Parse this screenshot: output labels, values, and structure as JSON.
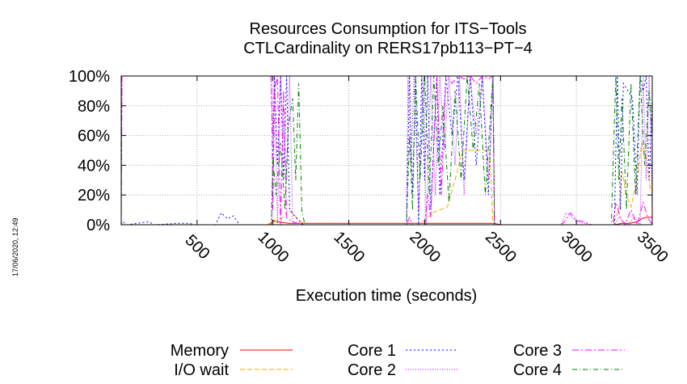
{
  "chart_data": {
    "type": "line",
    "title": "Resources Consumption for ITS−Tools",
    "subtitle": "CTLCardinality on RERS17pb113−PT−4",
    "xlabel": "Execution time (seconds)",
    "ylabel": "",
    "timestamp": "17/06/2020, 12:49",
    "xlim": [
      0,
      3500
    ],
    "ylim": [
      0,
      100
    ],
    "x_ticks": [
      500,
      1000,
      1500,
      2000,
      2500,
      3000,
      3500
    ],
    "x_tick_labels": [
      "500",
      "1000",
      "1500",
      "2000",
      "2500",
      "3000",
      "3500"
    ],
    "y_ticks": [
      0,
      20,
      40,
      60,
      80,
      100
    ],
    "y_tick_labels": [
      "0%",
      "20%",
      "40%",
      "60%",
      "80%",
      "100%"
    ],
    "grid": true,
    "legend_position": "bottom",
    "series": [
      {
        "name": "Memory",
        "color": "#ff0000",
        "dash": "solid",
        "points": [
          [
            0,
            0
          ],
          [
            500,
            0
          ],
          [
            980,
            0
          ],
          [
            1000,
            3
          ],
          [
            1030,
            2
          ],
          [
            1100,
            1
          ],
          [
            1150,
            1
          ],
          [
            1200,
            1
          ],
          [
            1900,
            1
          ],
          [
            2000,
            1
          ],
          [
            2100,
            1
          ],
          [
            2200,
            1
          ],
          [
            2300,
            1
          ],
          [
            2400,
            1
          ],
          [
            2460,
            1
          ],
          [
            2500,
            0
          ],
          [
            3250,
            0
          ],
          [
            3300,
            1
          ],
          [
            3350,
            1
          ],
          [
            3400,
            2
          ],
          [
            3430,
            4
          ],
          [
            3460,
            5
          ],
          [
            3500,
            5
          ]
        ]
      },
      {
        "name": "I/O wait",
        "color": "#ffa500",
        "dash": "6,3",
        "points": [
          [
            0,
            0
          ],
          [
            960,
            0
          ],
          [
            1000,
            2
          ],
          [
            1050,
            3
          ],
          [
            1100,
            10
          ],
          [
            1130,
            8
          ],
          [
            1170,
            3
          ],
          [
            1220,
            0
          ],
          [
            1870,
            0
          ],
          [
            1950,
            0
          ],
          [
            2000,
            3
          ],
          [
            2050,
            8
          ],
          [
            2100,
            10
          ],
          [
            2150,
            12
          ],
          [
            2200,
            30
          ],
          [
            2250,
            50
          ],
          [
            2300,
            50
          ],
          [
            2350,
            50
          ],
          [
            2400,
            50
          ],
          [
            2430,
            50
          ],
          [
            2450,
            0
          ],
          [
            3240,
            0
          ],
          [
            3280,
            10
          ],
          [
            3300,
            36
          ],
          [
            3330,
            20
          ],
          [
            3360,
            12
          ],
          [
            3400,
            30
          ],
          [
            3430,
            55
          ],
          [
            3460,
            45
          ],
          [
            3490,
            22
          ]
        ]
      },
      {
        "name": "Core 1",
        "color": "#0000ff",
        "dash": "2,3",
        "points": [
          [
            0,
            0
          ],
          [
            10,
            2
          ],
          [
            40,
            0
          ],
          [
            180,
            2
          ],
          [
            220,
            0
          ],
          [
            380,
            1
          ],
          [
            450,
            1
          ],
          [
            480,
            0
          ],
          [
            620,
            0
          ],
          [
            660,
            8
          ],
          [
            700,
            4
          ],
          [
            740,
            6
          ],
          [
            780,
            0
          ],
          [
            990,
            0
          ],
          [
            1010,
            100
          ],
          [
            1030,
            40
          ],
          [
            1050,
            100
          ],
          [
            1070,
            30
          ],
          [
            1090,
            100
          ],
          [
            1110,
            10
          ],
          [
            1150,
            5
          ],
          [
            1200,
            0
          ],
          [
            1880,
            0
          ],
          [
            1900,
            100
          ],
          [
            1920,
            20
          ],
          [
            1940,
            100
          ],
          [
            1960,
            0
          ],
          [
            1980,
            100
          ],
          [
            2000,
            30
          ],
          [
            2020,
            100
          ],
          [
            2040,
            10
          ],
          [
            2080,
            100
          ],
          [
            2100,
            20
          ],
          [
            2140,
            100
          ],
          [
            2180,
            60
          ],
          [
            2220,
            100
          ],
          [
            2260,
            30
          ],
          [
            2300,
            100
          ],
          [
            2340,
            40
          ],
          [
            2380,
            100
          ],
          [
            2420,
            20
          ],
          [
            2450,
            100
          ],
          [
            2460,
            0
          ],
          [
            3250,
            0
          ],
          [
            3270,
            100
          ],
          [
            3290,
            10
          ],
          [
            3310,
            95
          ],
          [
            3340,
            90
          ],
          [
            3370,
            85
          ],
          [
            3400,
            20
          ],
          [
            3420,
            100
          ],
          [
            3440,
            90
          ],
          [
            3460,
            100
          ],
          [
            3480,
            30
          ],
          [
            3500,
            85
          ]
        ]
      },
      {
        "name": "Core 2",
        "color": "#a000ff",
        "dash": "1,2",
        "points": [
          [
            0,
            0
          ],
          [
            5,
            100
          ],
          [
            960,
            100
          ],
          [
            985,
            100
          ],
          [
            1000,
            60
          ],
          [
            1010,
            100
          ],
          [
            1030,
            0
          ],
          [
            1050,
            100
          ],
          [
            1070,
            60
          ],
          [
            1090,
            30
          ],
          [
            1110,
            100
          ],
          [
            1130,
            0
          ],
          [
            1200,
            0
          ],
          [
            1880,
            0
          ],
          [
            1890,
            100
          ],
          [
            1910,
            40
          ],
          [
            1930,
            100
          ],
          [
            1960,
            10
          ],
          [
            1990,
            100
          ],
          [
            2010,
            0
          ],
          [
            2040,
            100
          ],
          [
            2070,
            20
          ],
          [
            2100,
            100
          ],
          [
            2130,
            50
          ],
          [
            2160,
            100
          ],
          [
            2200,
            40
          ],
          [
            2230,
            100
          ],
          [
            2260,
            20
          ],
          [
            2300,
            100
          ],
          [
            2340,
            60
          ],
          [
            2380,
            100
          ],
          [
            2420,
            30
          ],
          [
            2450,
            100
          ],
          [
            2460,
            0
          ],
          [
            2900,
            0
          ],
          [
            2930,
            8
          ],
          [
            2960,
            6
          ],
          [
            3000,
            2
          ],
          [
            3100,
            0
          ],
          [
            3250,
            0
          ],
          [
            3280,
            5
          ],
          [
            3310,
            2
          ],
          [
            3340,
            0
          ],
          [
            3380,
            5
          ],
          [
            3420,
            0
          ],
          [
            3440,
            100
          ],
          [
            3460,
            30
          ],
          [
            3480,
            100
          ],
          [
            3500,
            10
          ]
        ]
      },
      {
        "name": "Core 3",
        "color": "#ff00ff",
        "dash": "8,3,2,3",
        "points": [
          [
            0,
            0
          ],
          [
            5,
            100
          ],
          [
            960,
            100
          ],
          [
            990,
            100
          ],
          [
            1000,
            10
          ],
          [
            1010,
            90
          ],
          [
            1030,
            100
          ],
          [
            1050,
            0
          ],
          [
            1070,
            90
          ],
          [
            1090,
            5
          ],
          [
            1130,
            2
          ],
          [
            1200,
            0
          ],
          [
            1880,
            0
          ],
          [
            1900,
            5
          ],
          [
            1920,
            0
          ],
          [
            2000,
            0
          ],
          [
            2020,
            20
          ],
          [
            2040,
            5
          ],
          [
            2080,
            100
          ],
          [
            2110,
            20
          ],
          [
            2140,
            100
          ],
          [
            2180,
            95
          ],
          [
            2220,
            100
          ],
          [
            2260,
            98
          ],
          [
            2300,
            100
          ],
          [
            2340,
            95
          ],
          [
            2380,
            100
          ],
          [
            2420,
            98
          ],
          [
            2450,
            100
          ],
          [
            2460,
            0
          ],
          [
            2900,
            0
          ],
          [
            2920,
            2
          ],
          [
            2960,
            8
          ],
          [
            3000,
            3
          ],
          [
            3050,
            2
          ],
          [
            3100,
            0
          ],
          [
            3240,
            0
          ],
          [
            3260,
            15
          ],
          [
            3290,
            5
          ],
          [
            3320,
            0
          ],
          [
            3360,
            10
          ],
          [
            3400,
            0
          ],
          [
            3440,
            15
          ],
          [
            3470,
            5
          ],
          [
            3500,
            0
          ]
        ]
      },
      {
        "name": "Core 4",
        "color": "#008000",
        "dash": "6,3,1,3",
        "points": [
          [
            0,
            0
          ],
          [
            960,
            0
          ],
          [
            990,
            0
          ],
          [
            1000,
            45
          ],
          [
            1020,
            20
          ],
          [
            1050,
            55
          ],
          [
            1080,
            10
          ],
          [
            1100,
            65
          ],
          [
            1130,
            85
          ],
          [
            1150,
            30
          ],
          [
            1170,
            95
          ],
          [
            1190,
            10
          ],
          [
            1210,
            0
          ],
          [
            1880,
            0
          ],
          [
            1900,
            60
          ],
          [
            1920,
            10
          ],
          [
            1940,
            100
          ],
          [
            1970,
            30
          ],
          [
            2000,
            100
          ],
          [
            2030,
            20
          ],
          [
            2060,
            100
          ],
          [
            2090,
            40
          ],
          [
            2120,
            80
          ],
          [
            2160,
            15
          ],
          [
            2200,
            90
          ],
          [
            2240,
            30
          ],
          [
            2280,
            100
          ],
          [
            2320,
            50
          ],
          [
            2360,
            95
          ],
          [
            2400,
            20
          ],
          [
            2450,
            100
          ],
          [
            2460,
            0
          ],
          [
            3230,
            0
          ],
          [
            3260,
            100
          ],
          [
            3280,
            30
          ],
          [
            3300,
            85
          ],
          [
            3330,
            10
          ],
          [
            3360,
            95
          ],
          [
            3390,
            20
          ],
          [
            3420,
            100
          ],
          [
            3450,
            40
          ],
          [
            3480,
            90
          ],
          [
            3500,
            60
          ]
        ]
      }
    ]
  }
}
